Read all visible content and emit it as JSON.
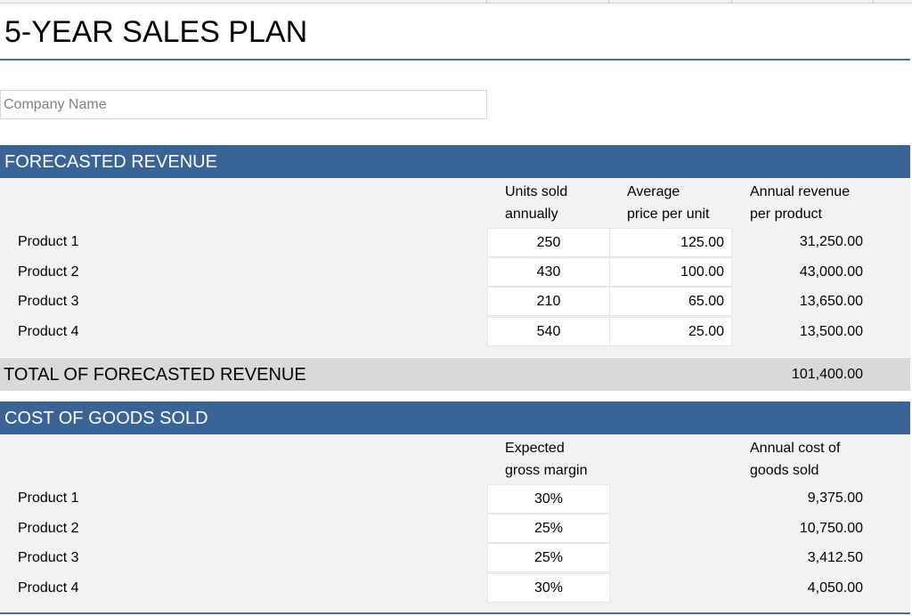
{
  "title": "5-YEAR SALES PLAN",
  "company": {
    "placeholder": "Company Name",
    "value": ""
  },
  "forecasted_revenue": {
    "header": "FORECASTED REVENUE",
    "columns": {
      "units": [
        "Units sold",
        "annually"
      ],
      "price": [
        "Average",
        "price per unit"
      ],
      "revenue": [
        "Annual revenue",
        "per product"
      ]
    },
    "rows": [
      {
        "product": "Product 1",
        "units": "250",
        "price": "125.00",
        "revenue": "31,250.00"
      },
      {
        "product": "Product 2",
        "units": "430",
        "price": "100.00",
        "revenue": "43,000.00"
      },
      {
        "product": "Product 3",
        "units": "210",
        "price": "65.00",
        "revenue": "13,650.00"
      },
      {
        "product": "Product 4",
        "units": "540",
        "price": "25.00",
        "revenue": "13,500.00"
      }
    ]
  },
  "total_revenue": {
    "label": "TOTAL OF FORECASTED REVENUE",
    "value": "101,400.00"
  },
  "cogs": {
    "header": "COST OF GOODS SOLD",
    "columns": {
      "margin": [
        "Expected",
        "gross margin"
      ],
      "cost": [
        "Annual cost of",
        "goods sold"
      ]
    },
    "rows": [
      {
        "product": "Product 1",
        "margin": "30%",
        "cost": "9,375.00"
      },
      {
        "product": "Product 2",
        "margin": "25%",
        "cost": "10,750.00"
      },
      {
        "product": "Product 3",
        "margin": "25%",
        "cost": "3,412.50"
      },
      {
        "product": "Product 4",
        "margin": "30%",
        "cost": "4,050.00"
      }
    ]
  },
  "colors": {
    "accent": "#3b6496",
    "panel": "#f2f2f2",
    "total_bar": "#d9d9d9"
  }
}
